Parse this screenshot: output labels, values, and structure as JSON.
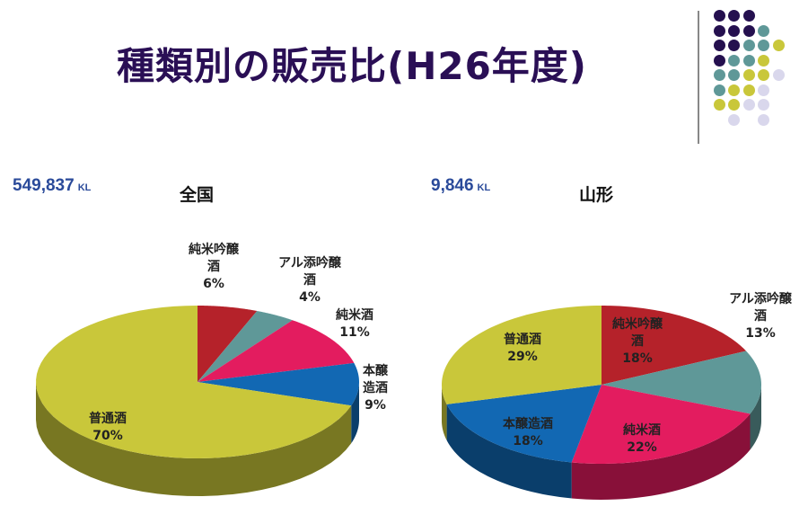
{
  "title": "種類別の販売比(H26年度)",
  "chart_data": [
    {
      "type": "pie",
      "title": "全国",
      "volume": "549,837",
      "unit": "KL",
      "slices": [
        {
          "label": "純米吟醸酒",
          "pct": 6,
          "color": "#b5222a",
          "lines": [
            "純米吟醸",
            "酒",
            "6%"
          ]
        },
        {
          "label": "アル添吟醸酒",
          "pct": 4,
          "color": "#5f9898",
          "lines": [
            "アル添吟醸",
            "酒",
            "4%"
          ]
        },
        {
          "label": "純米酒",
          "pct": 11,
          "color": "#e31c5f",
          "lines": [
            "純米酒",
            "11%"
          ]
        },
        {
          "label": "本醸造酒",
          "pct": 9,
          "color": "#1268b3",
          "lines": [
            "本醸",
            "造酒",
            "9%"
          ]
        },
        {
          "label": "普通酒",
          "pct": 70,
          "color": "#c9c73a",
          "lines": [
            "普通酒",
            "70%"
          ]
        }
      ]
    },
    {
      "type": "pie",
      "title": "山形",
      "volume": "9,846",
      "unit": "KL",
      "slices": [
        {
          "label": "純米吟醸酒",
          "pct": 18,
          "color": "#b5222a",
          "lines": [
            "純米吟醸",
            "酒",
            "18%"
          ]
        },
        {
          "label": "アル添吟醸酒",
          "pct": 13,
          "color": "#5f9898",
          "lines": [
            "アル添吟醸",
            "酒",
            "13%"
          ]
        },
        {
          "label": "純米酒",
          "pct": 22,
          "color": "#e31c5f",
          "lines": [
            "純米酒",
            "22%"
          ]
        },
        {
          "label": "本醸造酒",
          "pct": 18,
          "color": "#1268b3",
          "lines": [
            "本醸造酒",
            "18%"
          ]
        },
        {
          "label": "普通酒",
          "pct": 29,
          "color": "#c9c73a",
          "lines": [
            "普通酒",
            "29%"
          ]
        }
      ]
    }
  ],
  "dot_colors": {
    "P": "#25104f",
    "T": "#5f9898",
    "Y": "#c9c73a",
    "L": "#d9d7ec"
  }
}
